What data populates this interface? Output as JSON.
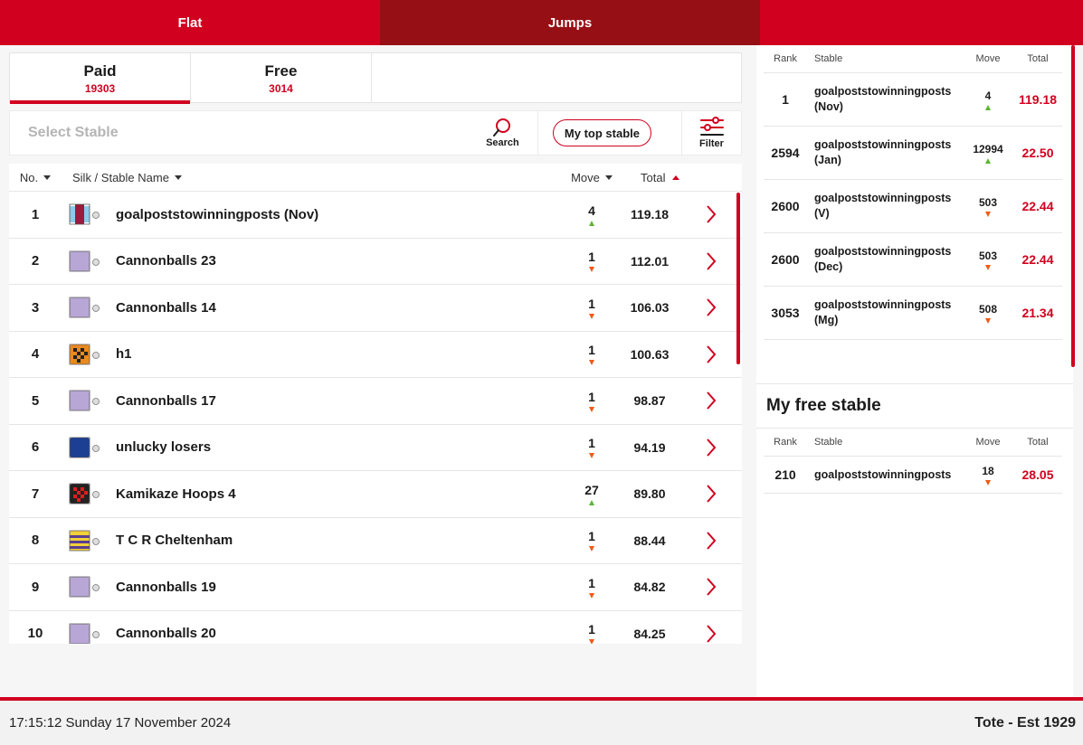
{
  "top_tabs": [
    {
      "label": "Flat",
      "active": false
    },
    {
      "label": "Jumps",
      "active": true
    }
  ],
  "type_tabs": [
    {
      "label": "Paid",
      "count": "19303",
      "active": true
    },
    {
      "label": "Free",
      "count": "3014",
      "active": false
    }
  ],
  "search": {
    "placeholder": "Select Stable",
    "search_label": "Search",
    "top_stable_label": "My top stable",
    "filter_label": "Filter"
  },
  "table": {
    "headers": {
      "no": "No.",
      "name": "Silk / Stable Name",
      "move": "Move",
      "total": "Total"
    },
    "rows": [
      {
        "no": "1",
        "name": "goalpoststowinningposts (Nov)",
        "move": "4",
        "dir": "up",
        "total": "119.18",
        "silk": "claret-blue"
      },
      {
        "no": "2",
        "name": "Cannonballs 23",
        "move": "1",
        "dir": "down",
        "total": "112.01",
        "silk": "lilac"
      },
      {
        "no": "3",
        "name": "Cannonballs 14",
        "move": "1",
        "dir": "down",
        "total": "106.03",
        "silk": "lilac"
      },
      {
        "no": "4",
        "name": "h1",
        "move": "1",
        "dir": "down",
        "total": "100.63",
        "silk": "orange-check"
      },
      {
        "no": "5",
        "name": "Cannonballs 17",
        "move": "1",
        "dir": "down",
        "total": "98.87",
        "silk": "lilac"
      },
      {
        "no": "6",
        "name": "unlucky losers",
        "move": "1",
        "dir": "down",
        "total": "94.19",
        "silk": "royal-blue"
      },
      {
        "no": "7",
        "name": "Kamikaze Hoops 4",
        "move": "27",
        "dir": "up",
        "total": "89.80",
        "silk": "red-check"
      },
      {
        "no": "8",
        "name": "T C R Cheltenham",
        "move": "1",
        "dir": "down",
        "total": "88.44",
        "silk": "yellow-hoops"
      },
      {
        "no": "9",
        "name": "Cannonballs 19",
        "move": "1",
        "dir": "down",
        "total": "84.82",
        "silk": "lilac"
      },
      {
        "no": "10",
        "name": "Cannonballs 20",
        "move": "1",
        "dir": "down",
        "total": "84.25",
        "silk": "lilac"
      }
    ]
  },
  "right_panel": {
    "headers": {
      "rank": "Rank",
      "stable": "Stable",
      "move": "Move",
      "total": "Total"
    },
    "rows": [
      {
        "rank": "1",
        "stable": "goalpoststowinningposts (Nov)",
        "move": "4",
        "dir": "up",
        "total": "119.18"
      },
      {
        "rank": "2594",
        "stable": "goalpoststowinningposts (Jan)",
        "move": "12994",
        "dir": "up",
        "total": "22.50"
      },
      {
        "rank": "2600",
        "stable": "goalpoststowinningposts (V)",
        "move": "503",
        "dir": "down",
        "total": "22.44"
      },
      {
        "rank": "2600",
        "stable": "goalpoststowinningposts (Dec)",
        "move": "503",
        "dir": "down",
        "total": "22.44"
      },
      {
        "rank": "3053",
        "stable": "goalpoststowinningposts (Mg)",
        "move": "508",
        "dir": "down",
        "total": "21.34"
      }
    ],
    "free_title": "My free stable",
    "free_rows": [
      {
        "rank": "210",
        "stable": "goalpoststowinningposts",
        "move": "18",
        "dir": "down",
        "total": "28.05"
      }
    ]
  },
  "footer": {
    "clock": "17:15:12 Sunday 17 November 2024",
    "brand": "Tote - Est 1929"
  },
  "colors": {
    "accent": "#d1001f",
    "accent_dark": "#960f14",
    "up": "#5cb531",
    "down": "#f05a14"
  }
}
